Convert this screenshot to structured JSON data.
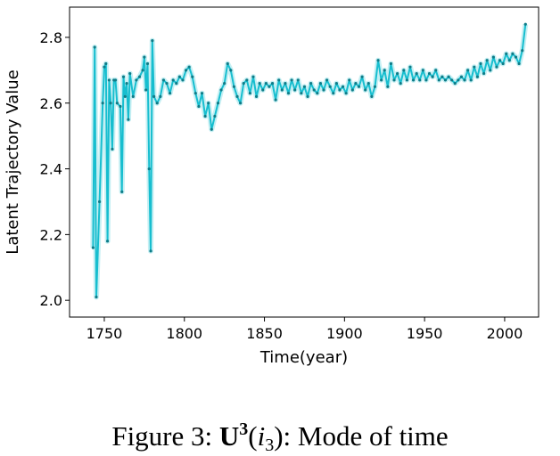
{
  "chart_data": {
    "type": "line",
    "x_label": "Time(year)",
    "y_label": "Latent Trajectory Value",
    "caption": {
      "prefix": "Figure 3:",
      "symbol": "U",
      "superscript": "3",
      "open": "(",
      "argument": "i",
      "subscript": "3",
      "rest": "): Mode of time"
    },
    "x": [
      1743,
      1744,
      1745,
      1747,
      1749,
      1750,
      1751,
      1752,
      1753,
      1754,
      1755,
      1756,
      1757,
      1758,
      1760,
      1761,
      1762,
      1763,
      1764,
      1765,
      1766,
      1768,
      1770,
      1772,
      1774,
      1775,
      1776,
      1777,
      1778,
      1779,
      1780,
      1781,
      1783,
      1785,
      1787,
      1789,
      1791,
      1793,
      1795,
      1797,
      1799,
      1801,
      1803,
      1805,
      1807,
      1809,
      1811,
      1813,
      1815,
      1817,
      1819,
      1821,
      1823,
      1825,
      1827,
      1829,
      1831,
      1833,
      1835,
      1837,
      1839,
      1841,
      1843,
      1845,
      1847,
      1849,
      1851,
      1853,
      1855,
      1857,
      1859,
      1861,
      1863,
      1865,
      1867,
      1869,
      1871,
      1873,
      1875,
      1877,
      1879,
      1881,
      1883,
      1885,
      1887,
      1889,
      1891,
      1893,
      1895,
      1897,
      1899,
      1901,
      1903,
      1905,
      1907,
      1909,
      1911,
      1913,
      1915,
      1917,
      1919,
      1921,
      1923,
      1925,
      1927,
      1929,
      1931,
      1933,
      1935,
      1937,
      1939,
      1941,
      1943,
      1945,
      1947,
      1949,
      1951,
      1953,
      1955,
      1957,
      1959,
      1961,
      1963,
      1965,
      1967,
      1969,
      1971,
      1973,
      1975,
      1977,
      1979,
      1981,
      1983,
      1985,
      1987,
      1989,
      1991,
      1993,
      1995,
      1997,
      1999,
      2001,
      2003,
      2005,
      2007,
      2009,
      2011,
      2013
    ],
    "series": [
      {
        "color": "#17becf",
        "values": [
          2.16,
          2.77,
          2.01,
          2.3,
          2.6,
          2.71,
          2.72,
          2.18,
          2.67,
          2.6,
          2.46,
          2.67,
          2.67,
          2.6,
          2.59,
          2.33,
          2.68,
          2.62,
          2.66,
          2.55,
          2.69,
          2.62,
          2.67,
          2.68,
          2.7,
          2.74,
          2.64,
          2.72,
          2.4,
          2.15,
          2.79,
          2.62,
          2.6,
          2.62,
          2.67,
          2.66,
          2.63,
          2.67,
          2.66,
          2.68,
          2.67,
          2.7,
          2.71,
          2.68,
          2.63,
          2.59,
          2.63,
          2.56,
          2.6,
          2.52,
          2.56,
          2.6,
          2.64,
          2.66,
          2.72,
          2.7,
          2.65,
          2.62,
          2.6,
          2.66,
          2.67,
          2.63,
          2.68,
          2.62,
          2.66,
          2.64,
          2.66,
          2.65,
          2.66,
          2.61,
          2.67,
          2.64,
          2.66,
          2.63,
          2.67,
          2.64,
          2.67,
          2.63,
          2.65,
          2.62,
          2.66,
          2.64,
          2.63,
          2.66,
          2.64,
          2.67,
          2.65,
          2.63,
          2.66,
          2.64,
          2.65,
          2.63,
          2.67,
          2.64,
          2.66,
          2.65,
          2.68,
          2.64,
          2.66,
          2.62,
          2.65,
          2.73,
          2.67,
          2.7,
          2.65,
          2.72,
          2.67,
          2.69,
          2.66,
          2.7,
          2.67,
          2.71,
          2.67,
          2.69,
          2.67,
          2.7,
          2.67,
          2.69,
          2.68,
          2.7,
          2.67,
          2.68,
          2.67,
          2.68,
          2.67,
          2.66,
          2.67,
          2.68,
          2.67,
          2.7,
          2.67,
          2.71,
          2.68,
          2.72,
          2.69,
          2.73,
          2.7,
          2.74,
          2.71,
          2.73,
          2.72,
          2.75,
          2.73,
          2.75,
          2.74,
          2.72,
          2.76,
          2.84
        ]
      }
    ],
    "xlim": [
      1728.3,
      2021.2
    ],
    "xticks": [
      1750,
      1800,
      1850,
      1900,
      1950,
      2000
    ],
    "ylim": [
      1.949,
      2.892
    ],
    "yticks": [
      {
        "value": 2.0,
        "label": "2.0"
      },
      2.2,
      2.4,
      2.6,
      2.8
    ],
    "grid": false
  }
}
